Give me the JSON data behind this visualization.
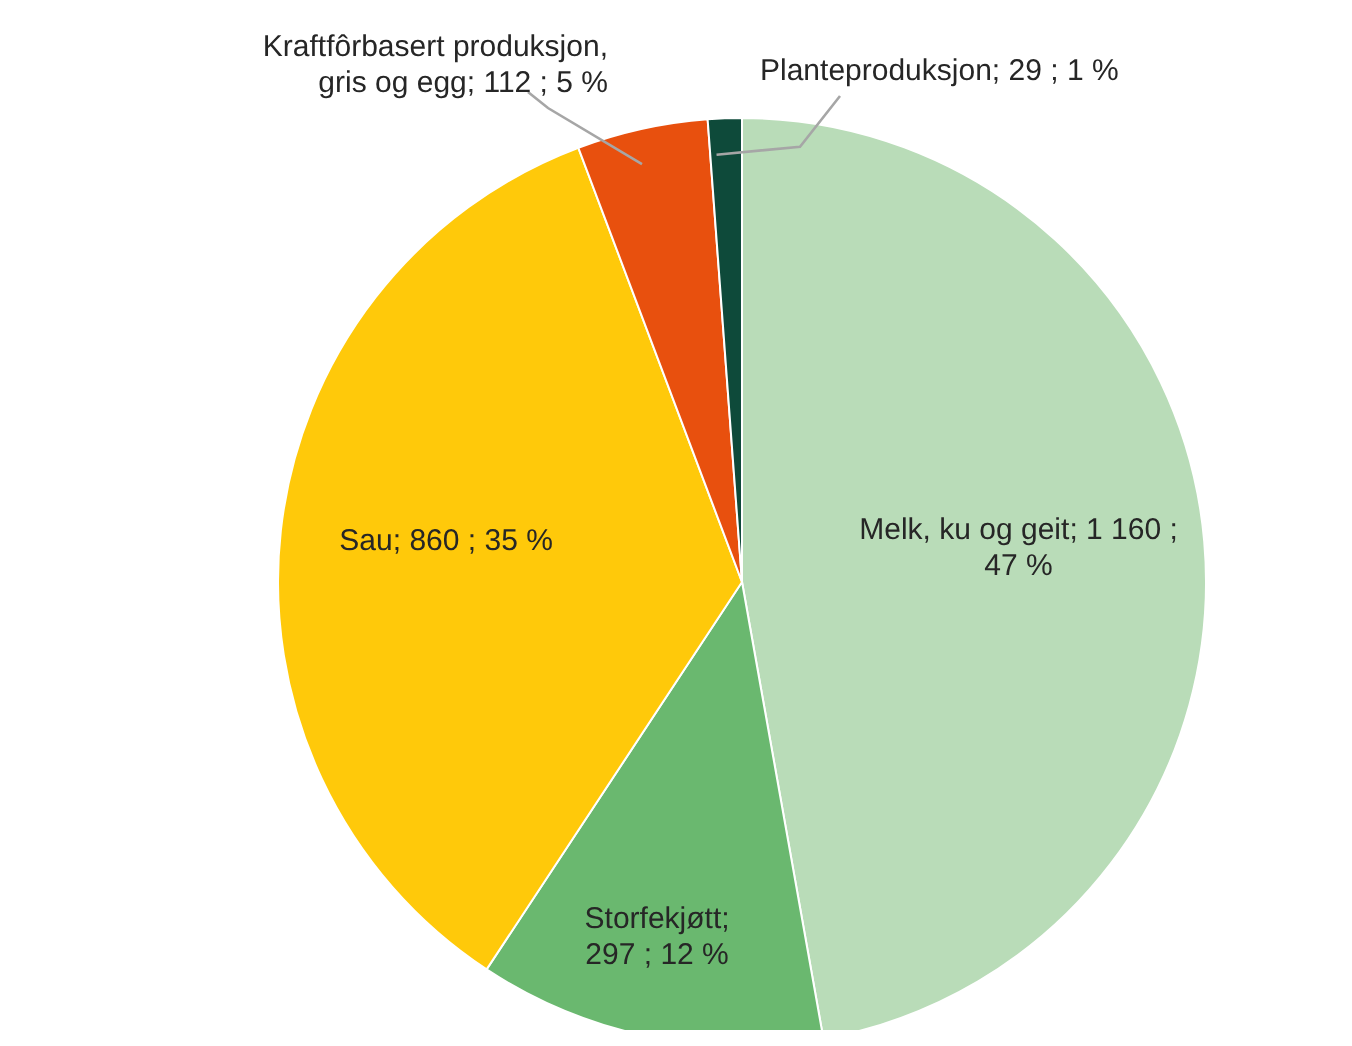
{
  "chart_data": {
    "type": "pie",
    "categories": [
      "Melk, ku og geit",
      "Storfekjøtt",
      "Sau",
      "Kraftfôrbasert produksjon, gris og egg",
      "Planteproduksjon"
    ],
    "values": [
      1160,
      297,
      860,
      112,
      29
    ],
    "value_labels": [
      "; 1 160 ; 47 %",
      "; 297 ; 12 %",
      "; 860 ; 35 %",
      "; 112 ; 5 %",
      "; 29 ; 1 %"
    ],
    "colors": [
      "#b9dcb8",
      "#6ab86f",
      "#ffc90a",
      "#e8500e",
      "#0e4a3a"
    ],
    "legend": false
  }
}
